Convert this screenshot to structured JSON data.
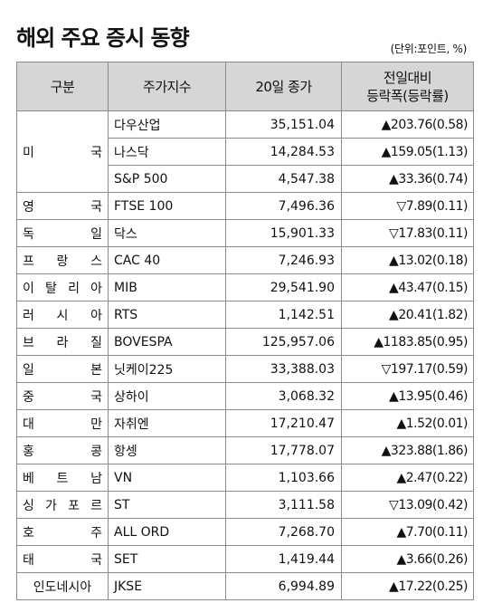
{
  "title": "해외 주요 증시 동향",
  "unit": "(단위:포인트, %)",
  "headers": {
    "region": "구분",
    "index": "주가지수",
    "close": "20일 종가",
    "change_line1": "전일대비",
    "change_line2": "등락폭(등락률)"
  },
  "rows": [
    {
      "region": "",
      "index": "다우산업",
      "close": "35,151.04",
      "change": "▲203.76(0.58)"
    },
    {
      "region": "",
      "index": "나스닥",
      "close": "14,284.53",
      "change": "▲159.05(1.13)"
    },
    {
      "region": "",
      "index": "S&P 500",
      "close": "4,547.38",
      "change": "▲33.36(0.74)"
    },
    {
      "region": "영 국",
      "index": "FTSE 100",
      "close": "7,496.36",
      "change": "▽7.89(0.11)"
    },
    {
      "region": "독 일",
      "index": "닥스",
      "close": "15,901.33",
      "change": "▽17.83(0.11)"
    },
    {
      "region": "프 랑 스",
      "index": "CAC 40",
      "close": "7,246.93",
      "change": "▲13.02(0.18)"
    },
    {
      "region": "이 탈 리 아",
      "index": "MIB",
      "close": "29,541.90",
      "change": "▲43.47(0.15)"
    },
    {
      "region": "러 시 아",
      "index": "RTS",
      "close": "1,142.51",
      "change": "▲20.41(1.82)"
    },
    {
      "region": "브 라 질",
      "index": "BOVESPA",
      "close": "125,957.06",
      "change": "▲1183.85(0.95)"
    },
    {
      "region": "일 본",
      "index": "닛케이225",
      "close": "33,388.03",
      "change": "▽197.17(0.59)"
    },
    {
      "region": "중 국",
      "index": "상하이",
      "close": "3,068.32",
      "change": "▲13.95(0.46)"
    },
    {
      "region": "대 만",
      "index": "자취엔",
      "close": "17,210.47",
      "change": "▲1.52(0.01)"
    },
    {
      "region": "홍 콩",
      "index": "항셍",
      "close": "17,778.07",
      "change": "▲323.88(1.86)"
    },
    {
      "region": "베 트 남",
      "index": "VN",
      "close": "1,103.66",
      "change": "▲2.47(0.22)"
    },
    {
      "region": "싱 가 포 르",
      "index": "ST",
      "close": "3,111.58",
      "change": "▽13.09(0.42)"
    },
    {
      "region": "호 주",
      "index": "ALL ORD",
      "close": "7,268.70",
      "change": "▲7.70(0.11)"
    },
    {
      "region": "태 국",
      "index": "SET",
      "close": "1,419.44",
      "change": "▲3.66(0.26)"
    },
    {
      "region": "인도네시아",
      "index": "JKSE",
      "close": "6,994.89",
      "change": "▲17.22(0.25)"
    }
  ],
  "merged_region": "미 국"
}
